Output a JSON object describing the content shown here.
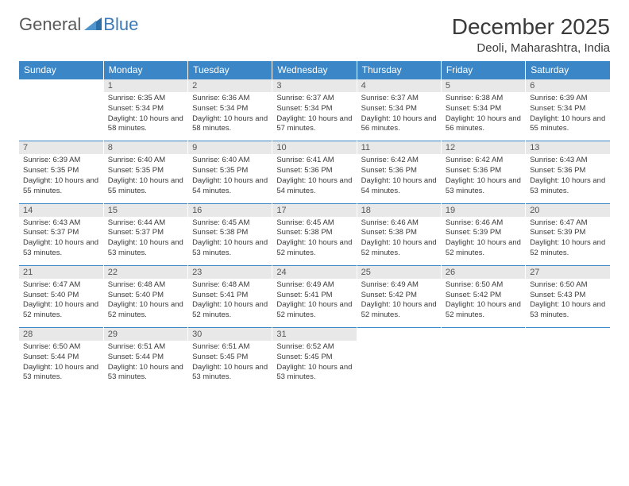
{
  "logo": {
    "text1": "General",
    "text2": "Blue"
  },
  "title": "December 2025",
  "location": "Deoli, Maharashtra, India",
  "colors": {
    "header_bg": "#3a86c6",
    "header_text": "#ffffff",
    "daynum_bg": "#e8e8e8",
    "border": "#3a86c6",
    "text": "#3a3a3a"
  },
  "dow": [
    "Sunday",
    "Monday",
    "Tuesday",
    "Wednesday",
    "Thursday",
    "Friday",
    "Saturday"
  ],
  "weeks": [
    [
      null,
      {
        "n": "1",
        "sr": "6:35 AM",
        "ss": "5:34 PM",
        "dl": "10 hours and 58 minutes."
      },
      {
        "n": "2",
        "sr": "6:36 AM",
        "ss": "5:34 PM",
        "dl": "10 hours and 58 minutes."
      },
      {
        "n": "3",
        "sr": "6:37 AM",
        "ss": "5:34 PM",
        "dl": "10 hours and 57 minutes."
      },
      {
        "n": "4",
        "sr": "6:37 AM",
        "ss": "5:34 PM",
        "dl": "10 hours and 56 minutes."
      },
      {
        "n": "5",
        "sr": "6:38 AM",
        "ss": "5:34 PM",
        "dl": "10 hours and 56 minutes."
      },
      {
        "n": "6",
        "sr": "6:39 AM",
        "ss": "5:34 PM",
        "dl": "10 hours and 55 minutes."
      }
    ],
    [
      {
        "n": "7",
        "sr": "6:39 AM",
        "ss": "5:35 PM",
        "dl": "10 hours and 55 minutes."
      },
      {
        "n": "8",
        "sr": "6:40 AM",
        "ss": "5:35 PM",
        "dl": "10 hours and 55 minutes."
      },
      {
        "n": "9",
        "sr": "6:40 AM",
        "ss": "5:35 PM",
        "dl": "10 hours and 54 minutes."
      },
      {
        "n": "10",
        "sr": "6:41 AM",
        "ss": "5:36 PM",
        "dl": "10 hours and 54 minutes."
      },
      {
        "n": "11",
        "sr": "6:42 AM",
        "ss": "5:36 PM",
        "dl": "10 hours and 54 minutes."
      },
      {
        "n": "12",
        "sr": "6:42 AM",
        "ss": "5:36 PM",
        "dl": "10 hours and 53 minutes."
      },
      {
        "n": "13",
        "sr": "6:43 AM",
        "ss": "5:36 PM",
        "dl": "10 hours and 53 minutes."
      }
    ],
    [
      {
        "n": "14",
        "sr": "6:43 AM",
        "ss": "5:37 PM",
        "dl": "10 hours and 53 minutes."
      },
      {
        "n": "15",
        "sr": "6:44 AM",
        "ss": "5:37 PM",
        "dl": "10 hours and 53 minutes."
      },
      {
        "n": "16",
        "sr": "6:45 AM",
        "ss": "5:38 PM",
        "dl": "10 hours and 53 minutes."
      },
      {
        "n": "17",
        "sr": "6:45 AM",
        "ss": "5:38 PM",
        "dl": "10 hours and 52 minutes."
      },
      {
        "n": "18",
        "sr": "6:46 AM",
        "ss": "5:38 PM",
        "dl": "10 hours and 52 minutes."
      },
      {
        "n": "19",
        "sr": "6:46 AM",
        "ss": "5:39 PM",
        "dl": "10 hours and 52 minutes."
      },
      {
        "n": "20",
        "sr": "6:47 AM",
        "ss": "5:39 PM",
        "dl": "10 hours and 52 minutes."
      }
    ],
    [
      {
        "n": "21",
        "sr": "6:47 AM",
        "ss": "5:40 PM",
        "dl": "10 hours and 52 minutes."
      },
      {
        "n": "22",
        "sr": "6:48 AM",
        "ss": "5:40 PM",
        "dl": "10 hours and 52 minutes."
      },
      {
        "n": "23",
        "sr": "6:48 AM",
        "ss": "5:41 PM",
        "dl": "10 hours and 52 minutes."
      },
      {
        "n": "24",
        "sr": "6:49 AM",
        "ss": "5:41 PM",
        "dl": "10 hours and 52 minutes."
      },
      {
        "n": "25",
        "sr": "6:49 AM",
        "ss": "5:42 PM",
        "dl": "10 hours and 52 minutes."
      },
      {
        "n": "26",
        "sr": "6:50 AM",
        "ss": "5:42 PM",
        "dl": "10 hours and 52 minutes."
      },
      {
        "n": "27",
        "sr": "6:50 AM",
        "ss": "5:43 PM",
        "dl": "10 hours and 53 minutes."
      }
    ],
    [
      {
        "n": "28",
        "sr": "6:50 AM",
        "ss": "5:44 PM",
        "dl": "10 hours and 53 minutes."
      },
      {
        "n": "29",
        "sr": "6:51 AM",
        "ss": "5:44 PM",
        "dl": "10 hours and 53 minutes."
      },
      {
        "n": "30",
        "sr": "6:51 AM",
        "ss": "5:45 PM",
        "dl": "10 hours and 53 minutes."
      },
      {
        "n": "31",
        "sr": "6:52 AM",
        "ss": "5:45 PM",
        "dl": "10 hours and 53 minutes."
      },
      null,
      null,
      null
    ]
  ],
  "labels": {
    "sunrise": "Sunrise:",
    "sunset": "Sunset:",
    "daylight": "Daylight:"
  }
}
